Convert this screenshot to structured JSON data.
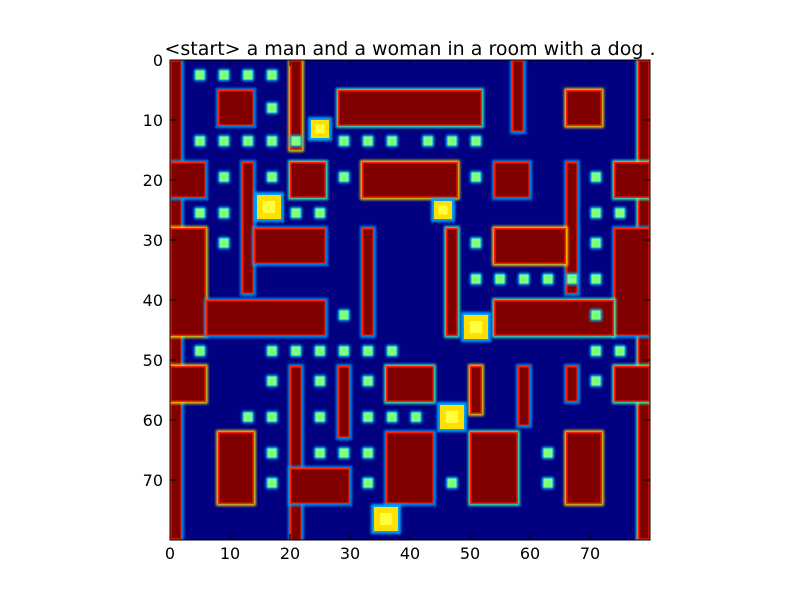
{
  "chart_data": {
    "type": "heatmap",
    "title": "<start> a man and a woman in a room with a dog .",
    "xlabel": "",
    "ylabel": "",
    "xlim": [
      0,
      80
    ],
    "ylim": [
      80,
      0
    ],
    "x_ticks": [
      "0",
      "10",
      "20",
      "30",
      "40",
      "50",
      "60",
      "70"
    ],
    "y_ticks": [
      "0",
      "10",
      "20",
      "30",
      "40",
      "50",
      "60",
      "70"
    ],
    "colormap": "jet",
    "grid": false,
    "colors": {
      "background": "#000080",
      "wall": "#800000",
      "wall_edge": "#ff2000",
      "edge_blue": "#00a0ff",
      "edge_cyan": "#40ffc0",
      "edge_yellow": "#ffe000",
      "pellet": "#80ff80",
      "pellet_border": "#00c0ff",
      "hotspot": "#ffff40"
    },
    "walls": [
      [
        0,
        0,
        2,
        80
      ],
      [
        78,
        0,
        2,
        80
      ],
      [
        20,
        0,
        2,
        15
      ],
      [
        57,
        0,
        2,
        12
      ],
      [
        8,
        5,
        6,
        6
      ],
      [
        28,
        5,
        24,
        6
      ],
      [
        66,
        5,
        6,
        6
      ],
      [
        0,
        17,
        6,
        6
      ],
      [
        12,
        17,
        2,
        22
      ],
      [
        20,
        17,
        6,
        6
      ],
      [
        32,
        17,
        16,
        6
      ],
      [
        54,
        17,
        6,
        6
      ],
      [
        66,
        17,
        2,
        22
      ],
      [
        74,
        17,
        6,
        6
      ],
      [
        0,
        28,
        6,
        18
      ],
      [
        14,
        28,
        12,
        6
      ],
      [
        32,
        28,
        2,
        18
      ],
      [
        46,
        28,
        2,
        18
      ],
      [
        54,
        28,
        12,
        6
      ],
      [
        74,
        28,
        6,
        18
      ],
      [
        6,
        40,
        20,
        6
      ],
      [
        54,
        40,
        20,
        6
      ],
      [
        0,
        51,
        6,
        6
      ],
      [
        20,
        51,
        2,
        30
      ],
      [
        28,
        51,
        2,
        12
      ],
      [
        36,
        51,
        8,
        6
      ],
      [
        50,
        51,
        2,
        8
      ],
      [
        58,
        51,
        2,
        10
      ],
      [
        66,
        51,
        2,
        6
      ],
      [
        74,
        51,
        6,
        6
      ],
      [
        8,
        62,
        6,
        12
      ],
      [
        20,
        68,
        10,
        6
      ],
      [
        36,
        62,
        8,
        12
      ],
      [
        50,
        62,
        8,
        12
      ],
      [
        66,
        62,
        6,
        12
      ]
    ],
    "pellets": [
      [
        5,
        2.5
      ],
      [
        9,
        2.5
      ],
      [
        13,
        2.5
      ],
      [
        17,
        2.5
      ],
      [
        17,
        8
      ],
      [
        5,
        13.5
      ],
      [
        9,
        13.5
      ],
      [
        13,
        13.5
      ],
      [
        17,
        13.5
      ],
      [
        21,
        13.5
      ],
      [
        29,
        13.5
      ],
      [
        33,
        13.5
      ],
      [
        37,
        13.5
      ],
      [
        43,
        13.5
      ],
      [
        47,
        13.5
      ],
      [
        51,
        13.5
      ],
      [
        9,
        19.5
      ],
      [
        17,
        19.5
      ],
      [
        29,
        19.5
      ],
      [
        51,
        19.5
      ],
      [
        71,
        19.5
      ],
      [
        5,
        25.5
      ],
      [
        9,
        25.5
      ],
      [
        21,
        25.5
      ],
      [
        25,
        25.5
      ],
      [
        71,
        25.5
      ],
      [
        75,
        25.5
      ],
      [
        9,
        30.5
      ],
      [
        51,
        30.5
      ],
      [
        71,
        30.5
      ],
      [
        51,
        36.5
      ],
      [
        55,
        36.5
      ],
      [
        59,
        36.5
      ],
      [
        63,
        36.5
      ],
      [
        67,
        36.5
      ],
      [
        71,
        36.5
      ],
      [
        29,
        42.5
      ],
      [
        71,
        42.5
      ],
      [
        5,
        48.5
      ],
      [
        17,
        48.5
      ],
      [
        21,
        48.5
      ],
      [
        25,
        48.5
      ],
      [
        29,
        48.5
      ],
      [
        33,
        48.5
      ],
      [
        37,
        48.5
      ],
      [
        71,
        48.5
      ],
      [
        75,
        48.5
      ],
      [
        17,
        53.5
      ],
      [
        25,
        53.5
      ],
      [
        33,
        53.5
      ],
      [
        71,
        53.5
      ],
      [
        13,
        59.5
      ],
      [
        17,
        59.5
      ],
      [
        25,
        59.5
      ],
      [
        33,
        59.5
      ],
      [
        37,
        59.5
      ],
      [
        41,
        59.5
      ],
      [
        17,
        65.5
      ],
      [
        25,
        65.5
      ],
      [
        29,
        65.5
      ],
      [
        33,
        65.5
      ],
      [
        63,
        65.5
      ],
      [
        17,
        70.5
      ],
      [
        33,
        70.5
      ],
      [
        47,
        70.5
      ],
      [
        63,
        70.5
      ]
    ],
    "hotspots": [
      [
        16.5,
        24.5,
        4
      ],
      [
        25,
        11.5,
        3
      ],
      [
        45.5,
        25,
        3
      ],
      [
        51,
        44.5,
        4
      ],
      [
        47,
        59.5,
        4
      ],
      [
        36,
        76.5,
        4
      ]
    ]
  }
}
